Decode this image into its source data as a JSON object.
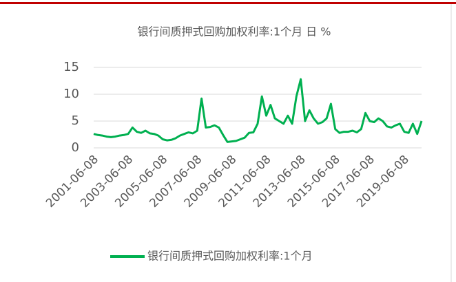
{
  "chart_data": {
    "type": "line",
    "title": "银行间质押式回购加权利率:1个月 日 %",
    "x": [
      "2001-06-08",
      "2001-09-08",
      "2001-12-08",
      "2002-03-08",
      "2002-06-08",
      "2002-09-08",
      "2002-12-08",
      "2003-03-08",
      "2003-06-08",
      "2003-09-08",
      "2003-12-08",
      "2004-03-08",
      "2004-06-08",
      "2004-09-08",
      "2004-12-08",
      "2005-03-08",
      "2005-06-08",
      "2005-09-08",
      "2005-12-08",
      "2006-03-08",
      "2006-06-08",
      "2006-09-08",
      "2006-12-08",
      "2007-03-08",
      "2007-06-08",
      "2007-09-08",
      "2007-12-08",
      "2008-03-08",
      "2008-06-08",
      "2008-09-08",
      "2008-12-08",
      "2009-03-08",
      "2009-06-08",
      "2009-09-08",
      "2009-12-08",
      "2010-03-08",
      "2010-06-08",
      "2010-09-08",
      "2010-12-08",
      "2011-03-08",
      "2011-06-08",
      "2011-09-08",
      "2011-12-08",
      "2012-03-08",
      "2012-06-08",
      "2012-09-08",
      "2012-12-08",
      "2013-03-08",
      "2013-06-08",
      "2013-09-08",
      "2013-12-08",
      "2014-03-08",
      "2014-06-08",
      "2014-09-08",
      "2014-12-08",
      "2015-03-08",
      "2015-06-08",
      "2015-09-08",
      "2015-12-08",
      "2016-03-08",
      "2016-06-08",
      "2016-09-08",
      "2016-12-08",
      "2017-03-08",
      "2017-06-08",
      "2017-09-08",
      "2017-12-08",
      "2018-03-08",
      "2018-06-08",
      "2018-09-08",
      "2018-12-08",
      "2019-03-08",
      "2019-06-08",
      "2019-09-08",
      "2019-12-08",
      "2020-03-08",
      "2020-06-08"
    ],
    "series": [
      {
        "name": "银行间质押式回购加权利率:1个月",
        "color": "#00b050",
        "values": [
          2.6,
          2.4,
          2.3,
          2.1,
          2.0,
          2.1,
          2.3,
          2.4,
          2.6,
          3.8,
          3.0,
          2.8,
          3.2,
          2.7,
          2.6,
          2.3,
          1.6,
          1.4,
          1.5,
          1.8,
          2.3,
          2.6,
          2.9,
          2.7,
          3.2,
          9.2,
          3.8,
          3.9,
          4.2,
          3.8,
          2.4,
          1.1,
          1.2,
          1.3,
          1.6,
          1.9,
          2.8,
          2.9,
          4.5,
          9.6,
          6.0,
          8.0,
          5.5,
          5.0,
          4.5,
          6.0,
          4.5,
          9.6,
          12.8,
          5.0,
          7.0,
          5.5,
          4.5,
          4.8,
          5.5,
          8.2,
          3.5,
          2.8,
          3.0,
          3.0,
          3.2,
          2.9,
          3.5,
          6.5,
          5.0,
          4.8,
          5.5,
          5.0,
          4.0,
          3.8,
          4.2,
          4.5,
          3.0,
          2.8,
          4.5,
          2.6,
          5.0
        ]
      }
    ],
    "xticks": [
      "2001-06-08",
      "2003-06-08",
      "2005-06-08",
      "2007-06-08",
      "2009-06-08",
      "2011-06-08",
      "2013-06-08",
      "2015-06-08",
      "2017-06-08",
      "2019-06-08"
    ],
    "ylim": [
      0,
      15
    ],
    "yticks": [
      0,
      5,
      10,
      15
    ],
    "grid": true,
    "legend": "bottom"
  }
}
